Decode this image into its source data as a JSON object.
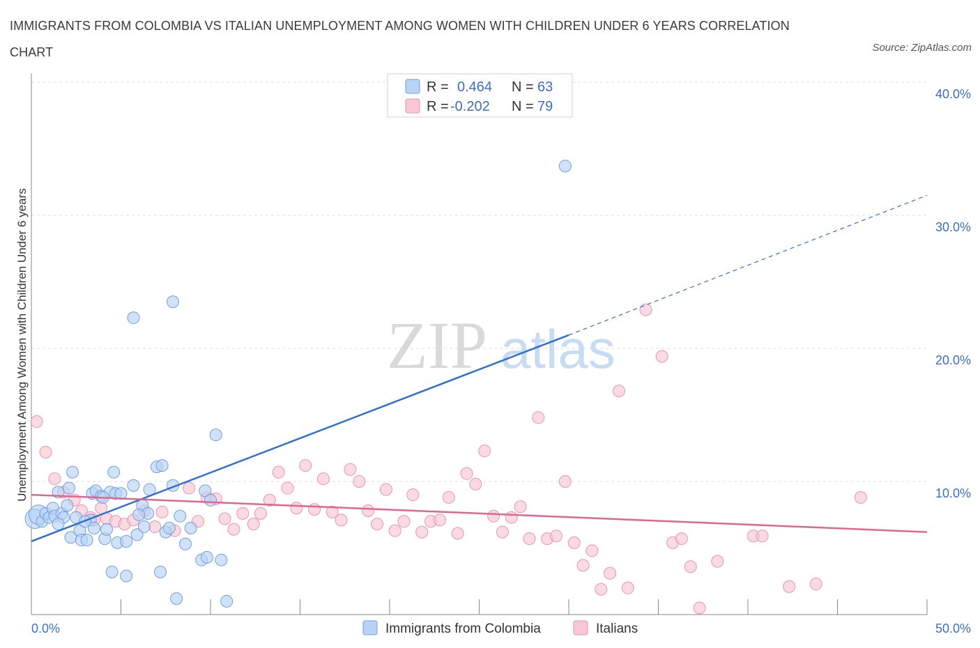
{
  "title": "IMMIGRANTS FROM COLOMBIA VS ITALIAN UNEMPLOYMENT AMONG WOMEN WITH CHILDREN UNDER 6 YEARS CORRELATION CHART",
  "source": "Source: ZipAtlas.com",
  "watermark": {
    "zip": "ZIP",
    "atlas": "atlas"
  },
  "legend": {
    "rows": [
      {
        "r_label": "R =",
        "r_value": "0.464",
        "n_label": "N =",
        "n_value": "63"
      },
      {
        "r_label": "R =",
        "r_value": "-0.202",
        "n_label": "N =",
        "n_value": "79"
      }
    ]
  },
  "bottom_legend": [
    "Immigrants from Colombia",
    "Italians"
  ],
  "colors": {
    "blue_fill": "#b9d3f5",
    "blue_stroke": "#6e9fde",
    "blue_line": "#2f6fd0",
    "pink_fill": "#f8c6d4",
    "pink_stroke": "#ea93ad",
    "pink_line": "#e0668f",
    "grid": "#dddddd",
    "axis": "#888888"
  },
  "chart_data": {
    "type": "scatter",
    "title": "IMMIGRANTS FROM COLOMBIA VS ITALIAN UNEMPLOYMENT AMONG WOMEN WITH CHILDREN UNDER 6 YEARS CORRELATION CHART",
    "xlabel": "",
    "ylabel": "Unemployment Among Women with Children Under 6 years",
    "xlim": [
      0,
      50
    ],
    "ylim": [
      0,
      40
    ],
    "x_ticks": [
      "0.0%",
      "50.0%"
    ],
    "y_ticks": [
      "10.0%",
      "20.0%",
      "30.0%",
      "40.0%"
    ],
    "y_tick_values": [
      10,
      20,
      30,
      40
    ],
    "grid": "horizontal dashed",
    "legend_placement": "top-center",
    "series": [
      {
        "name": "Immigrants from Colombia",
        "r": 0.464,
        "n": 63,
        "trend": {
          "x0": 0,
          "y0": 5.5,
          "x1": 30,
          "y1": 21.0,
          "dashed_to_x": 50,
          "dashed_to_y": 31.5
        },
        "points": [
          [
            0.2,
            7.2
          ],
          [
            0.4,
            7.5
          ],
          [
            0.6,
            7.0
          ],
          [
            0.8,
            7.6
          ],
          [
            1.0,
            7.3
          ],
          [
            1.2,
            8.0
          ],
          [
            1.3,
            7.4
          ],
          [
            1.5,
            9.2
          ],
          [
            1.7,
            7.6
          ],
          [
            1.8,
            7.3
          ],
          [
            2.0,
            8.2
          ],
          [
            2.1,
            9.5
          ],
          [
            2.3,
            10.7
          ],
          [
            2.5,
            7.3
          ],
          [
            2.7,
            6.3
          ],
          [
            2.2,
            5.8
          ],
          [
            2.8,
            5.6
          ],
          [
            3.1,
            5.6
          ],
          [
            3.3,
            7.1
          ],
          [
            3.4,
            9.1
          ],
          [
            3.5,
            6.5
          ],
          [
            3.6,
            9.3
          ],
          [
            3.9,
            8.9
          ],
          [
            4.1,
            5.7
          ],
          [
            4.2,
            6.4
          ],
          [
            4.4,
            9.2
          ],
          [
            4.6,
            10.7
          ],
          [
            4.7,
            9.1
          ],
          [
            4.8,
            5.4
          ],
          [
            5.0,
            9.1
          ],
          [
            5.3,
            5.5
          ],
          [
            5.7,
            9.7
          ],
          [
            5.9,
            6.0
          ],
          [
            6.2,
            8.2
          ],
          [
            6.3,
            6.6
          ],
          [
            6.5,
            7.6
          ],
          [
            6.6,
            9.4
          ],
          [
            7.0,
            11.1
          ],
          [
            7.3,
            11.2
          ],
          [
            7.5,
            6.2
          ],
          [
            7.7,
            6.5
          ],
          [
            7.9,
            9.7
          ],
          [
            8.3,
            7.4
          ],
          [
            8.6,
            5.3
          ],
          [
            8.9,
            6.5
          ],
          [
            9.5,
            4.1
          ],
          [
            9.8,
            4.3
          ],
          [
            9.7,
            9.3
          ],
          [
            10.0,
            8.6
          ],
          [
            10.3,
            13.5
          ],
          [
            10.6,
            4.1
          ],
          [
            10.9,
            1.0
          ],
          [
            4.5,
            3.2
          ],
          [
            5.3,
            2.9
          ],
          [
            7.2,
            3.2
          ],
          [
            8.1,
            1.2
          ],
          [
            5.7,
            22.3
          ],
          [
            7.9,
            23.5
          ],
          [
            29.8,
            33.7
          ],
          [
            3.0,
            7.0
          ],
          [
            4.0,
            8.8
          ],
          [
            6.0,
            7.5
          ],
          [
            1.5,
            6.8
          ]
        ]
      },
      {
        "name": "Italians",
        "r": -0.202,
        "n": 79,
        "trend": {
          "x0": 0,
          "y0": 9.0,
          "x1": 50,
          "y1": 6.2
        },
        "points": [
          [
            0.3,
            14.5
          ],
          [
            0.8,
            12.2
          ],
          [
            1.3,
            10.2
          ],
          [
            1.8,
            9.2
          ],
          [
            2.4,
            8.6
          ],
          [
            2.8,
            7.8
          ],
          [
            3.3,
            7.3
          ],
          [
            3.9,
            8.0
          ],
          [
            4.2,
            7.2
          ],
          [
            4.7,
            7.0
          ],
          [
            5.2,
            6.8
          ],
          [
            5.7,
            7.1
          ],
          [
            6.3,
            7.8
          ],
          [
            6.9,
            6.6
          ],
          [
            7.3,
            7.7
          ],
          [
            8.0,
            6.3
          ],
          [
            8.8,
            9.5
          ],
          [
            9.3,
            7.0
          ],
          [
            9.8,
            8.8
          ],
          [
            10.3,
            8.7
          ],
          [
            10.8,
            7.2
          ],
          [
            11.3,
            6.4
          ],
          [
            11.8,
            7.6
          ],
          [
            12.4,
            6.8
          ],
          [
            12.8,
            7.6
          ],
          [
            13.3,
            8.6
          ],
          [
            13.8,
            10.7
          ],
          [
            14.3,
            9.5
          ],
          [
            14.8,
            8.0
          ],
          [
            15.3,
            11.2
          ],
          [
            15.8,
            7.9
          ],
          [
            16.3,
            10.2
          ],
          [
            16.8,
            7.7
          ],
          [
            17.3,
            7.1
          ],
          [
            17.8,
            10.9
          ],
          [
            18.3,
            10.0
          ],
          [
            18.8,
            7.8
          ],
          [
            19.3,
            6.8
          ],
          [
            19.8,
            9.4
          ],
          [
            20.3,
            6.3
          ],
          [
            20.8,
            7.0
          ],
          [
            21.3,
            9.0
          ],
          [
            21.8,
            6.2
          ],
          [
            22.3,
            7.0
          ],
          [
            22.8,
            7.1
          ],
          [
            23.3,
            8.8
          ],
          [
            23.8,
            6.1
          ],
          [
            24.3,
            10.6
          ],
          [
            24.8,
            9.8
          ],
          [
            25.3,
            12.3
          ],
          [
            25.8,
            7.4
          ],
          [
            26.3,
            6.2
          ],
          [
            26.8,
            7.3
          ],
          [
            27.3,
            8.1
          ],
          [
            27.8,
            5.7
          ],
          [
            28.3,
            14.8
          ],
          [
            28.8,
            5.7
          ],
          [
            29.3,
            5.9
          ],
          [
            29.8,
            10.0
          ],
          [
            30.3,
            5.4
          ],
          [
            30.8,
            3.7
          ],
          [
            31.3,
            4.8
          ],
          [
            31.8,
            1.9
          ],
          [
            32.3,
            3.1
          ],
          [
            32.8,
            16.8
          ],
          [
            33.3,
            2.0
          ],
          [
            34.3,
            22.9
          ],
          [
            35.2,
            19.4
          ],
          [
            35.8,
            5.4
          ],
          [
            36.3,
            5.7
          ],
          [
            36.8,
            3.6
          ],
          [
            37.3,
            0.5
          ],
          [
            38.3,
            4.0
          ],
          [
            40.3,
            5.9
          ],
          [
            40.8,
            5.9
          ],
          [
            42.3,
            2.1
          ],
          [
            43.8,
            2.3
          ],
          [
            46.3,
            8.8
          ],
          [
            3.5,
            7.1
          ]
        ]
      }
    ]
  }
}
